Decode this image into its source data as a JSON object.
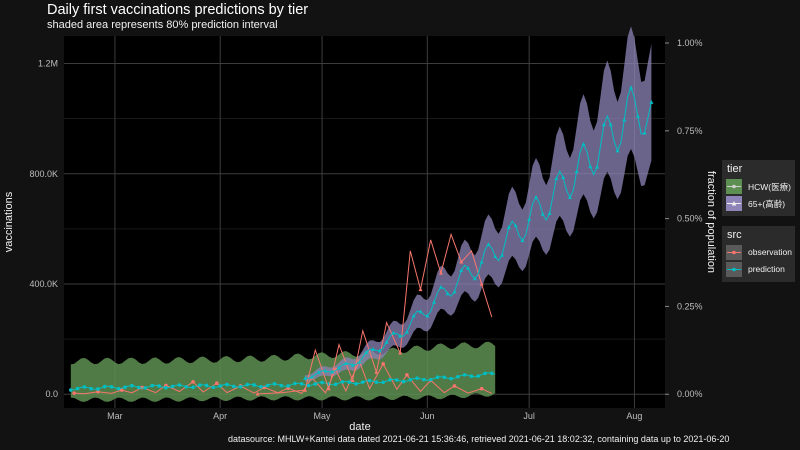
{
  "chart_data": {
    "type": "line",
    "title": "Daily first vaccinations predictions by tier",
    "subtitle": "shaded area represents 80% prediction interval",
    "xlabel": "date",
    "ylabel": "vaccinations",
    "y2label": "fraction of population",
    "caption": "datasource: MHLW+Kantei data dated 2021-06-21 15:36:46, retrieved 2021-06-21 18:02:32, containing data up to 2021-06-20",
    "x_range": [
      "2021-02-14",
      "2021-08-10"
    ],
    "xticks": [
      "Mar",
      "Apr",
      "May",
      "Jun",
      "Jul",
      "Aug"
    ],
    "xtick_dates": [
      "2021-03-01",
      "2021-04-01",
      "2021-05-01",
      "2021-06-01",
      "2021-07-01",
      "2021-08-01"
    ],
    "ylim": [
      -50000,
      1300000
    ],
    "yticks": [
      0,
      400000,
      800000,
      1200000
    ],
    "ytick_labels": [
      "0.0",
      "400.0K",
      "800.0K",
      "1.2M"
    ],
    "y2ticks": [
      "0.00%",
      "0.25%",
      "0.50%",
      "0.75%",
      "1.00%"
    ],
    "grid": true,
    "legend_position": "right",
    "legend": {
      "tier": {
        "title": "tier",
        "entries": [
          "HCW(医療)",
          "65+(高齢)"
        ],
        "colors": [
          "#5e8f52",
          "#8e84b8"
        ]
      },
      "src": {
        "title": "src",
        "entries": [
          "observation",
          "prediction"
        ],
        "colors": [
          "#f8766d",
          "#00bfc4"
        ]
      }
    },
    "series": [
      {
        "tier": "HCW(医療)",
        "src": "observation",
        "points": [
          [
            "2021-02-17",
            4000
          ],
          [
            "2021-02-20",
            2000
          ],
          [
            "2021-02-24",
            9000
          ],
          [
            "2021-02-28",
            3000
          ],
          [
            "2021-03-03",
            15000
          ],
          [
            "2021-03-06",
            5000
          ],
          [
            "2021-03-09",
            24000
          ],
          [
            "2021-03-13",
            6000
          ],
          [
            "2021-03-16",
            32000
          ],
          [
            "2021-03-20",
            10000
          ],
          [
            "2021-03-24",
            45000
          ],
          [
            "2021-03-27",
            8000
          ],
          [
            "2021-03-31",
            40000
          ],
          [
            "2021-04-03",
            6000
          ],
          [
            "2021-04-07",
            30000
          ],
          [
            "2021-04-11",
            4000
          ],
          [
            "2021-04-14",
            25000
          ],
          [
            "2021-04-18",
            5000
          ],
          [
            "2021-04-21",
            22000
          ],
          [
            "2021-04-25",
            3000
          ],
          [
            "2021-04-28",
            60000
          ],
          [
            "2021-05-02",
            5000
          ],
          [
            "2021-05-05",
            90000
          ],
          [
            "2021-05-08",
            12000
          ],
          [
            "2021-05-12",
            120000
          ],
          [
            "2021-05-15",
            20000
          ],
          [
            "2021-05-19",
            110000
          ],
          [
            "2021-05-23",
            18000
          ],
          [
            "2021-05-26",
            70000
          ],
          [
            "2021-05-30",
            10000
          ],
          [
            "2021-06-02",
            50000
          ],
          [
            "2021-06-06",
            6000
          ],
          [
            "2021-06-09",
            30000
          ],
          [
            "2021-06-13",
            4000
          ],
          [
            "2021-06-17",
            20000
          ],
          [
            "2021-06-20",
            3000
          ]
        ]
      },
      {
        "tier": "HCW(医療)",
        "src": "prediction",
        "points": [
          [
            "2021-02-16",
            20000
          ],
          [
            "2021-03-01",
            25000
          ],
          [
            "2021-03-15",
            28000
          ],
          [
            "2021-04-01",
            30000
          ],
          [
            "2021-04-15",
            32000
          ],
          [
            "2021-04-26",
            36000
          ],
          [
            "2021-05-10",
            42000
          ],
          [
            "2021-05-24",
            50000
          ],
          [
            "2021-06-07",
            60000
          ],
          [
            "2021-06-21",
            75000
          ]
        ],
        "band": [
          [
            "2021-02-16",
            -20000,
            120000
          ],
          [
            "2021-03-15",
            -20000,
            122000
          ],
          [
            "2021-04-15",
            -15000,
            130000
          ],
          [
            "2021-05-15",
            -15000,
            150000
          ],
          [
            "2021-06-07",
            -10000,
            175000
          ],
          [
            "2021-06-21",
            0,
            180000
          ]
        ]
      },
      {
        "tier": "65+(高齢)",
        "src": "observation",
        "points": [
          [
            "2021-04-12",
            1000
          ],
          [
            "2021-04-19",
            5000
          ],
          [
            "2021-04-26",
            15000
          ],
          [
            "2021-04-29",
            160000
          ],
          [
            "2021-05-03",
            20000
          ],
          [
            "2021-05-06",
            180000
          ],
          [
            "2021-05-10",
            50000
          ],
          [
            "2021-05-13",
            230000
          ],
          [
            "2021-05-17",
            80000
          ],
          [
            "2021-05-20",
            260000
          ],
          [
            "2021-05-24",
            150000
          ],
          [
            "2021-05-27",
            520000
          ],
          [
            "2021-05-30",
            380000
          ],
          [
            "2021-06-02",
            560000
          ],
          [
            "2021-06-05",
            440000
          ],
          [
            "2021-06-08",
            580000
          ],
          [
            "2021-06-11",
            480000
          ],
          [
            "2021-06-14",
            520000
          ],
          [
            "2021-06-17",
            400000
          ],
          [
            "2021-06-20",
            280000
          ]
        ]
      },
      {
        "tier": "65+(高齢)",
        "src": "prediction",
        "points": [
          [
            "2021-04-26",
            60000
          ],
          [
            "2021-05-10",
            110000
          ],
          [
            "2021-05-24",
            220000
          ],
          [
            "2021-06-07",
            380000
          ],
          [
            "2021-06-21",
            520000
          ],
          [
            "2021-07-05",
            680000
          ],
          [
            "2021-07-19",
            860000
          ],
          [
            "2021-08-02",
            1050000
          ],
          [
            "2021-08-06",
            990000
          ]
        ],
        "band_halfwidth_fraction": 0.2
      }
    ]
  }
}
